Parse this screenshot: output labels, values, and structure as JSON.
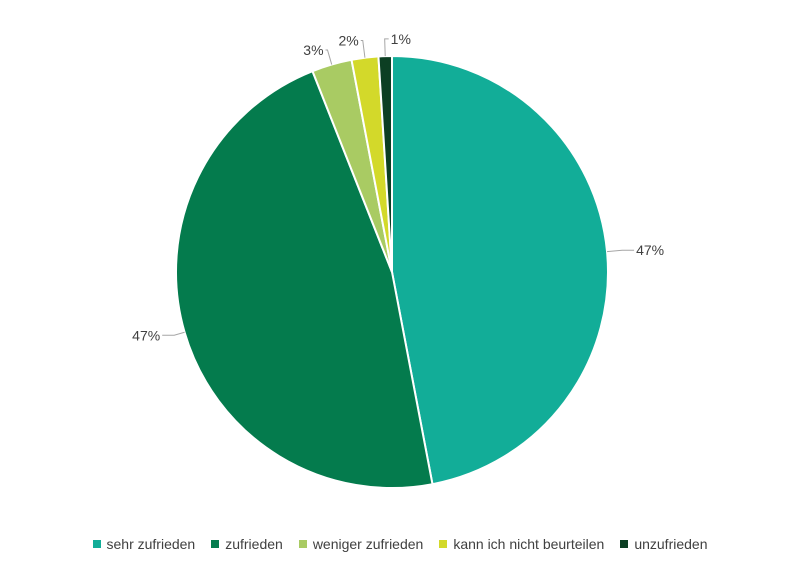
{
  "chart_data": {
    "type": "pie",
    "categories": [
      "sehr zufrieden",
      "zufrieden",
      "weniger zufrieden",
      "kann ich nicht beurteilen",
      "unzufrieden"
    ],
    "values": [
      47,
      47,
      3,
      2,
      1
    ],
    "value_labels": [
      "47%",
      "47%",
      "3%",
      "2%",
      "1%"
    ],
    "colors": [
      "#12ad98",
      "#047b4d",
      "#a9cb63",
      "#d3d92a",
      "#0c3f23"
    ],
    "legend_position": "bottom",
    "start_angle": "12 o'clock",
    "direction": "clockwise"
  }
}
